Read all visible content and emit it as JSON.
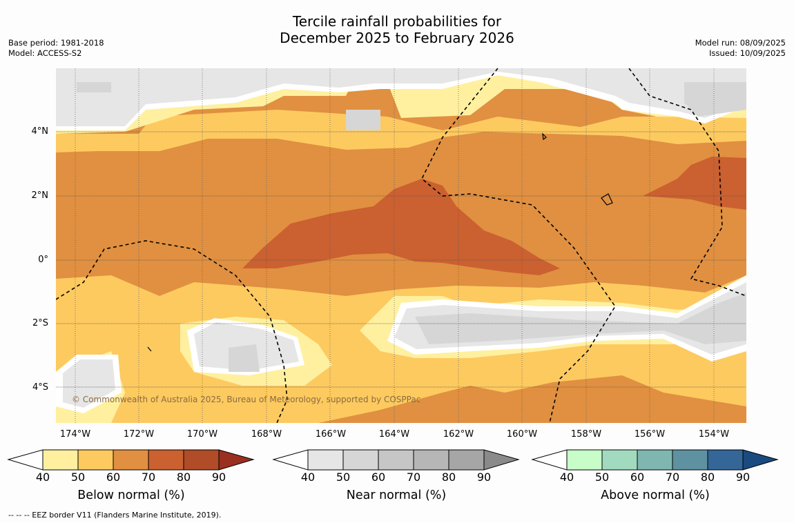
{
  "title_line1": "Tercile rainfall probabilities for",
  "title_line2": "December 2025 to February 2026",
  "base_period": "Base period: 1981-2018",
  "model": "Model: ACCESS-S2",
  "model_run": "Model run: 08/09/2025",
  "issued": "Issued: 10/09/2025",
  "credit": "© Commonwealth of Australia 2025, Bureau of Meteorology, supported by COSPPac",
  "footnote": "--  --  -- EEZ border V11 (Flanders Marine Institute, 2019).",
  "y_ticks": [
    "4°N",
    "2°N",
    "0°",
    "2°S",
    "4°S"
  ],
  "x_ticks": [
    "174°W",
    "172°W",
    "170°W",
    "168°W",
    "166°W",
    "164°W",
    "162°W",
    "160°W",
    "158°W",
    "156°W",
    "154°W"
  ],
  "colorbars": [
    {
      "title": "Below normal (%)",
      "labels": [
        "40",
        "50",
        "60",
        "70",
        "80",
        "90"
      ],
      "colors": [
        "#fff0a0",
        "#fdca60",
        "#e09040",
        "#cb6030",
        "#b04c28",
        "#9a3020"
      ]
    },
    {
      "title": "Near normal (%)",
      "labels": [
        "40",
        "50",
        "60",
        "70",
        "80",
        "90"
      ],
      "colors": [
        "#e6e6e6",
        "#d6d6d6",
        "#c6c6c6",
        "#b6b6b6",
        "#a6a6a6",
        "#8a8a8a"
      ]
    },
    {
      "title": "Above normal (%)",
      "labels": [
        "40",
        "50",
        "60",
        "70",
        "80",
        "90"
      ],
      "colors": [
        "#c8fcc8",
        "#a2dabf",
        "#80b6b0",
        "#5e92a0",
        "#356698",
        "#1a4a80"
      ]
    }
  ]
}
